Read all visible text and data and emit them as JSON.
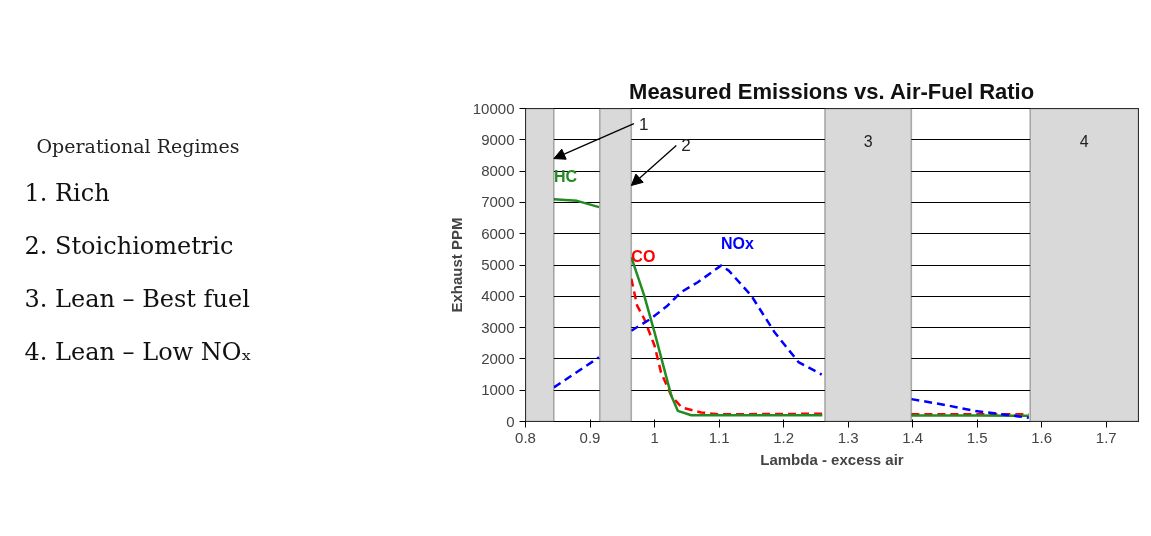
{
  "chart_data": [
    {
      "type": "other",
      "title": "Operational Regimes",
      "annotations": [
        "1.  Rich",
        "2.  Stoichiometric",
        "3.  Lean – Best fuel",
        "4.  Lean – Low NOₓ"
      ]
    },
    {
      "type": "line",
      "title": "Measured Emissions vs. Air-Fuel Ratio",
      "xlabel": "Lambda - excess air",
      "ylabel": "Exhaust PPM",
      "xlim": [
        0.8,
        1.75
      ],
      "ylim": [
        0,
        10000
      ],
      "xticks": [
        0.8,
        0.9,
        1,
        1.1,
        1.2,
        1.3,
        1.4,
        1.5,
        1.6,
        1.7
      ],
      "yticks": [
        0,
        1000,
        2000,
        3000,
        4000,
        5000,
        6000,
        7000,
        8000,
        9000,
        10000
      ],
      "grid": "y",
      "legend": false,
      "series": [
        {
          "name": "CO",
          "color": "#ff0000",
          "line_style": "dashed",
          "x": [
            0.964,
            0.973,
            0.984,
            1.0,
            1.01,
            1.026,
            1.042,
            1.072,
            1.1,
            1.2,
            1.26,
            1.3,
            1.398,
            1.5,
            1.58
          ],
          "values": [
            4560,
            3700,
            3280,
            2420,
            1570,
            820,
            450,
            290,
            230,
            240,
            250,
            null,
            230,
            230,
            230
          ]
        },
        {
          "name": "HC",
          "color": "#228b22",
          "line_style": "solid",
          "x": [
            0.844,
            0.88,
            0.914,
            0.94,
            0.964,
            0.984,
            1.0,
            1.015,
            1.026,
            1.036,
            1.057,
            1.15,
            1.26,
            1.3,
            1.398,
            1.5,
            1.58
          ],
          "values": [
            7100,
            7050,
            6850,
            null,
            5250,
            4020,
            2850,
            1675,
            820,
            340,
            200,
            200,
            200,
            null,
            190,
            190,
            180
          ]
        },
        {
          "name": "NOx",
          "color": "#0000ff",
          "line_style": "dashed",
          "x": [
            0.844,
            0.914,
            0.94,
            0.964,
            0.994,
            1.02,
            1.041,
            1.067,
            1.103,
            1.115,
            1.15,
            1.186,
            1.223,
            1.259,
            1.3,
            1.398,
            1.45,
            1.496,
            1.58
          ],
          "values": [
            1090,
            2050,
            null,
            2900,
            3280,
            3700,
            4130,
            4450,
            4980,
            4820,
            4020,
            2850,
            1900,
            1500,
            null,
            715,
            530,
            340,
            120
          ]
        }
      ],
      "bands": [
        {
          "axis": "x",
          "from": 0.8,
          "to": 0.844,
          "color": "#d9d9d9"
        },
        {
          "axis": "x",
          "from": 0.915,
          "to": 0.964,
          "color": "#d9d9d9"
        },
        {
          "axis": "x",
          "from": 1.264,
          "to": 1.398,
          "label": "3",
          "color": "#d9d9d9"
        },
        {
          "axis": "x",
          "from": 1.582,
          "to": 1.75,
          "label": "4",
          "color": "#d9d9d9"
        }
      ],
      "annotations": [
        {
          "text": "1",
          "x": 0.844,
          "y": 8400
        },
        {
          "text": "2",
          "x": 0.964,
          "y": 7540
        }
      ]
    }
  ]
}
